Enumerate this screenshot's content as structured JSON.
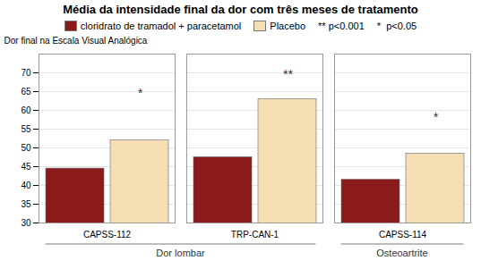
{
  "chart_data": {
    "type": "bar",
    "title": "Média da intensidade final da dor com três meses de tratamento",
    "ylabel": "Dor final na Escala Visual Analógica",
    "categories": [
      "CAPSS-112",
      "TRP-CAN-1",
      "CAPSS-114"
    ],
    "series": [
      {
        "name": "cloridrato de tramadol + paracetamol",
        "color": "#8B1A1A",
        "values": [
          44.5,
          47.5,
          41.5
        ]
      },
      {
        "name": "Placebo",
        "color": "#F5DEB3",
        "values": [
          52.0,
          63.0,
          48.5
        ]
      }
    ],
    "ylim": [
      30,
      75
    ],
    "yticks": [
      30,
      35,
      40,
      45,
      50,
      55,
      60,
      65,
      70
    ],
    "grid": true,
    "legend": "top",
    "annotations": [
      {
        "text": "*",
        "category": "CAPSS-112",
        "series": "Placebo",
        "y": 63.5
      },
      {
        "text": "**",
        "category": "TRP-CAN-1",
        "series": "Placebo",
        "y": 68.5
      },
      {
        "text": "*",
        "category": "CAPSS-114",
        "series": "Placebo",
        "y": 57.0
      }
    ],
    "group_labels": [
      {
        "text": "Dor lombar",
        "categories": [
          "CAPSS-112",
          "TRP-CAN-1"
        ]
      },
      {
        "text": "Osteoartrite",
        "categories": [
          "CAPSS-114"
        ]
      }
    ],
    "notes": [
      "** p<0.001",
      "*  p<0.05"
    ]
  }
}
